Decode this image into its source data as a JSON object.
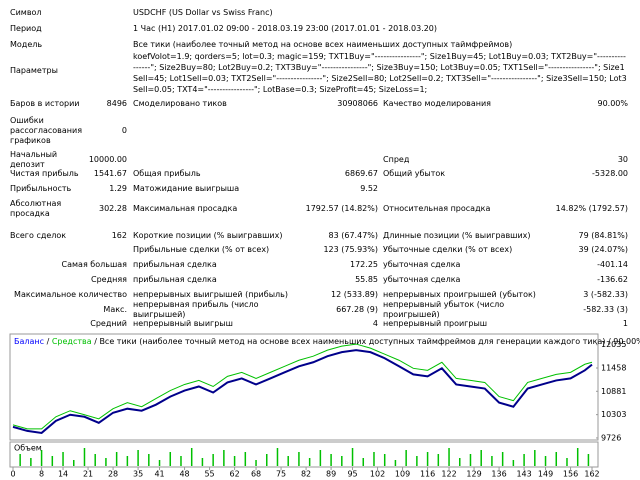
{
  "header_rows": [
    {
      "label": "Символ",
      "value": "USDCHF (US Dollar vs Swiss Franc)"
    },
    {
      "label": "Период",
      "value": "1 Час (H1) 2017.01.02 09:00 - 2018.03.19 23:00 (2017.01.01 - 2018.03.20)"
    },
    {
      "label": "Модель",
      "value": "Все тики (наиболее точный метод на основе всех наименьших доступных таймфреймов)"
    }
  ],
  "parameters": {
    "label": "Параметры",
    "value": "koefVolot=1.9; qorders=5; lot=0.3; magic=159; TXT1Buy=\"----------------\"; Size1Buy=45; Lot1Buy=0.03; TXT2Buy=\"----------------\"; Size2Buy=80; Lot2Buy=0.2; TXT3Buy=\"----------------\"; Size3Buy=150; Lot3Buy=0.05; TXT1Sell=\"----------------\"; Size1Sell=45; Lot1Sell=0.03; TXT2Sell=\"----------------\"; Size2Sell=80; Lot2Sell=0.2; TXT3Sell=\"----------------\"; Size3Sell=150; Lot3Sell=0.05; TXT4=\"----------------\"; LotBase=0.3; SizeProfit=45; SizeLoss=1;"
  },
  "stats": [
    {
      "l1": "Баров в истории",
      "v1": "8496",
      "l2": "Смоделировано тиков",
      "v2": "30908066",
      "l3": "Качество моделирования",
      "v3": "90.00%"
    },
    {
      "l1": "Ошибки рассогласования графиков",
      "v1": "0"
    },
    {
      "l1": "Начальный депозит",
      "v1": "10000.00",
      "l3": "Спред",
      "v3": "30"
    },
    {
      "l1": "Чистая прибыль",
      "v1": "1541.67",
      "l2": "Общая прибыль",
      "v2": "6869.67",
      "l3": "Общий убыток",
      "v3": "-5328.00"
    },
    {
      "l1": "Прибыльность",
      "v1": "1.29",
      "l2": "Матожидание выигрыша",
      "v2": "9.52"
    },
    {
      "l1": "Абсолютная просадка",
      "v1": "302.28",
      "l2": "Максимальная просадка",
      "v2": "1792.57 (14.82%)",
      "l3": "Относительная просадка",
      "v3": "14.82% (1792.57)"
    },
    {
      "l1": "Всего сделок",
      "v1": "162",
      "l2": "Короткие позиции (% выигравших)",
      "v2": "83 (67.47%)",
      "l3": "Длинные позиции (% выигравших)",
      "v3": "79 (84.81%)"
    },
    {
      "l2": "Прибыльные сделки (% от всех)",
      "v2": "123 (75.93%)",
      "l3": "Убыточные сделки (% от всех)",
      "v3": "39 (24.07%)"
    },
    {
      "group": "Самая большая",
      "l2": "прибыльная сделка",
      "v2": "172.25",
      "l3": "убыточная сделка",
      "v3": "-401.14"
    },
    {
      "group": "Средняя",
      "l2": "прибыльная сделка",
      "v2": "55.85",
      "l3": "убыточная сделка",
      "v3": "-136.62"
    },
    {
      "group": "Максимальное количество",
      "l2": "непрерывных выигрышей (прибыль)",
      "v2": "12 (533.89)",
      "l3": "непрерывных проигрышей (убыток)",
      "v3": "3 (-582.33)"
    },
    {
      "group": "Макс.",
      "l2": "непрерывная прибыль (число выигрышей)",
      "v2": "667.28 (9)",
      "l3": "непрерывный убыток (число проигрышей)",
      "v3": "-582.33 (3)"
    },
    {
      "group": "Средний",
      "l2": "непрерывный выигрыш",
      "v2": "4",
      "l3": "непрерывный проигрыш",
      "v3": "1"
    }
  ],
  "chart_data": {
    "type": "line",
    "separator": "/",
    "subtitle": "Все тики (наиболее точный метод на основе всех наименьших доступных таймфреймов для генерации каждого тика)",
    "quality": "90.00%",
    "x": [
      0,
      4,
      8,
      12,
      16,
      20,
      24,
      28,
      32,
      36,
      40,
      44,
      48,
      52,
      56,
      60,
      64,
      68,
      72,
      76,
      80,
      84,
      88,
      92,
      96,
      100,
      104,
      108,
      112,
      116,
      120,
      124,
      128,
      132,
      136,
      140,
      144,
      148,
      152,
      156,
      160,
      162
    ],
    "series": [
      {
        "name": "Средства",
        "color": "#00c000",
        "values": [
          10050,
          9950,
          9950,
          10250,
          10400,
          10300,
          10200,
          10450,
          10600,
          10500,
          10700,
          10900,
          11050,
          11150,
          11000,
          11250,
          11350,
          11200,
          11350,
          11500,
          11650,
          11750,
          11900,
          12000,
          12050,
          11950,
          11800,
          11650,
          11450,
          11400,
          11600,
          11200,
          11150,
          11100,
          10750,
          10650,
          11100,
          11200,
          11300,
          11350,
          11550,
          11600
        ]
      },
      {
        "name": "Баланс",
        "color": "#00008b",
        "values": [
          10000,
          9900,
          9850,
          10150,
          10300,
          10250,
          10100,
          10350,
          10450,
          10400,
          10550,
          10750,
          10900,
          11000,
          10850,
          11100,
          11200,
          11050,
          11200,
          11350,
          11500,
          11600,
          11750,
          11850,
          11900,
          11850,
          11700,
          11500,
          11300,
          11250,
          11450,
          11050,
          11000,
          10950,
          10600,
          10500,
          10950,
          11050,
          11150,
          11200,
          11400,
          11541.67
        ]
      }
    ],
    "xlim": [
      0,
      162
    ],
    "xticks": [
      0,
      8,
      14,
      21,
      28,
      35,
      41,
      48,
      55,
      62,
      68,
      75,
      82,
      89,
      95,
      102,
      109,
      116,
      122,
      129,
      136,
      143,
      149,
      156,
      162
    ],
    "ylim": [
      9700,
      12250
    ],
    "yticks": [
      9726,
      10303,
      10881,
      11458,
      12035
    ],
    "volume": {
      "label": "Объем",
      "color": "#00c000",
      "ylim": [
        0,
        1
      ],
      "x": [
        2,
        5,
        8,
        11,
        14,
        17,
        20,
        23,
        26,
        29,
        32,
        35,
        38,
        41,
        44,
        47,
        50,
        53,
        56,
        59,
        62,
        65,
        68,
        71,
        74,
        77,
        80,
        83,
        86,
        89,
        92,
        95,
        98,
        101,
        104,
        107,
        110,
        113,
        116,
        119,
        122,
        125,
        128,
        131,
        134,
        137,
        140,
        143,
        146,
        149,
        152,
        155,
        158,
        161
      ],
      "values": [
        0.6,
        0.4,
        0.8,
        0.5,
        0.7,
        0.3,
        0.9,
        0.6,
        0.4,
        0.7,
        0.5,
        0.8,
        0.6,
        0.3,
        0.7,
        0.5,
        0.9,
        0.4,
        0.6,
        0.8,
        0.5,
        0.7,
        0.3,
        0.6,
        0.9,
        0.5,
        0.7,
        0.4,
        0.8,
        0.6,
        0.5,
        0.9,
        0.4,
        0.7,
        0.6,
        0.3,
        0.8,
        0.5,
        0.7,
        0.6,
        0.9,
        0.4,
        0.6,
        0.8,
        0.5,
        0.7,
        0.3,
        0.6,
        0.8,
        0.5,
        0.7,
        0.4,
        0.9,
        0.6
      ]
    }
  }
}
